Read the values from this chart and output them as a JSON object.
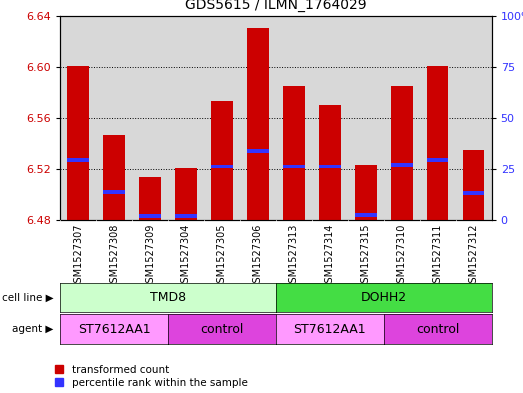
{
  "title": "GDS5615 / ILMN_1764029",
  "samples": [
    "GSM1527307",
    "GSM1527308",
    "GSM1527309",
    "GSM1527304",
    "GSM1527305",
    "GSM1527306",
    "GSM1527313",
    "GSM1527314",
    "GSM1527315",
    "GSM1527310",
    "GSM1527311",
    "GSM1527312"
  ],
  "bar_bottom": 6.48,
  "transformed_counts": [
    6.601,
    6.547,
    6.514,
    6.521,
    6.573,
    6.63,
    6.585,
    6.57,
    6.523,
    6.585,
    6.601,
    6.535
  ],
  "percentile_values": [
    6.527,
    6.502,
    6.483,
    6.483,
    6.522,
    6.534,
    6.522,
    6.522,
    6.484,
    6.523,
    6.527,
    6.501
  ],
  "ylim_left": [
    6.48,
    6.64
  ],
  "ylim_right": [
    0,
    100
  ],
  "yticks_left": [
    6.48,
    6.52,
    6.56,
    6.6,
    6.64
  ],
  "yticks_right": [
    0,
    25,
    50,
    75,
    100
  ],
  "ytick_labels_right": [
    "0",
    "25",
    "50",
    "75",
    "100%"
  ],
  "bar_color": "#cc0000",
  "blue_color": "#3333ff",
  "cell_line_groups": [
    {
      "label": "TMD8",
      "start": 0,
      "end": 5,
      "color": "#ccffcc"
    },
    {
      "label": "DOHH2",
      "start": 6,
      "end": 11,
      "color": "#44dd44"
    }
  ],
  "agent_groups": [
    {
      "label": "ST7612AA1",
      "start": 0,
      "end": 2,
      "color": "#ff99ff"
    },
    {
      "label": "control",
      "start": 3,
      "end": 5,
      "color": "#dd44dd"
    },
    {
      "label": "ST7612AA1",
      "start": 6,
      "end": 8,
      "color": "#ff99ff"
    },
    {
      "label": "control",
      "start": 9,
      "end": 11,
      "color": "#dd44dd"
    }
  ],
  "legend_items": [
    {
      "label": "transformed count",
      "color": "#cc0000"
    },
    {
      "label": "percentile rank within the sample",
      "color": "#3333ff"
    }
  ],
  "bar_width": 0.6,
  "tick_label_color_left": "#cc0000",
  "tick_label_color_right": "#3333ff",
  "background_color": "#ffffff",
  "plot_bg_color": "#d8d8d8"
}
